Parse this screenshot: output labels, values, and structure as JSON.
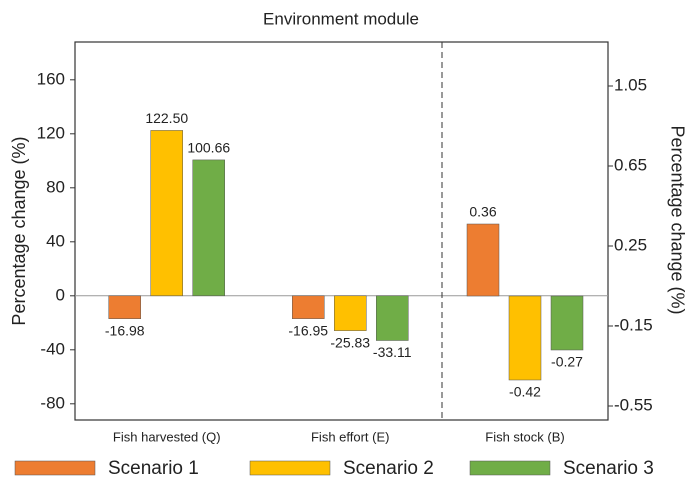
{
  "chart_data": {
    "type": "bar",
    "title": "Environment module",
    "categories": [
      "Fish harvested (Q)",
      "Fish effort (E)",
      "Fish stock (B)"
    ],
    "category_axis": [
      "y",
      "y",
      "y2"
    ],
    "series": [
      {
        "name": "Scenario 1",
        "color": "#ed7d31",
        "values": [
          -16.98,
          -16.95,
          0.36
        ]
      },
      {
        "name": "Scenario 2",
        "color": "#ffc000",
        "values": [
          122.5,
          -25.83,
          -0.42
        ],
        "value_labels": [
          "122.50",
          "-25.83",
          "-0.42"
        ]
      },
      {
        "name": "Scenario 3",
        "color": "#70ad47",
        "values": [
          100.66,
          -33.11,
          -0.27
        ]
      }
    ],
    "ylabel": "Percentage change (%)",
    "y2label": "Percentage change (%)",
    "ylim": [
      -92,
      188
    ],
    "yticks": [
      160,
      120,
      80,
      40,
      0,
      -40,
      -80
    ],
    "y2lim": [
      -0.62,
      1.27
    ],
    "y2ticks": [
      1.05,
      0.65,
      0.25,
      -0.15,
      -0.55
    ]
  }
}
